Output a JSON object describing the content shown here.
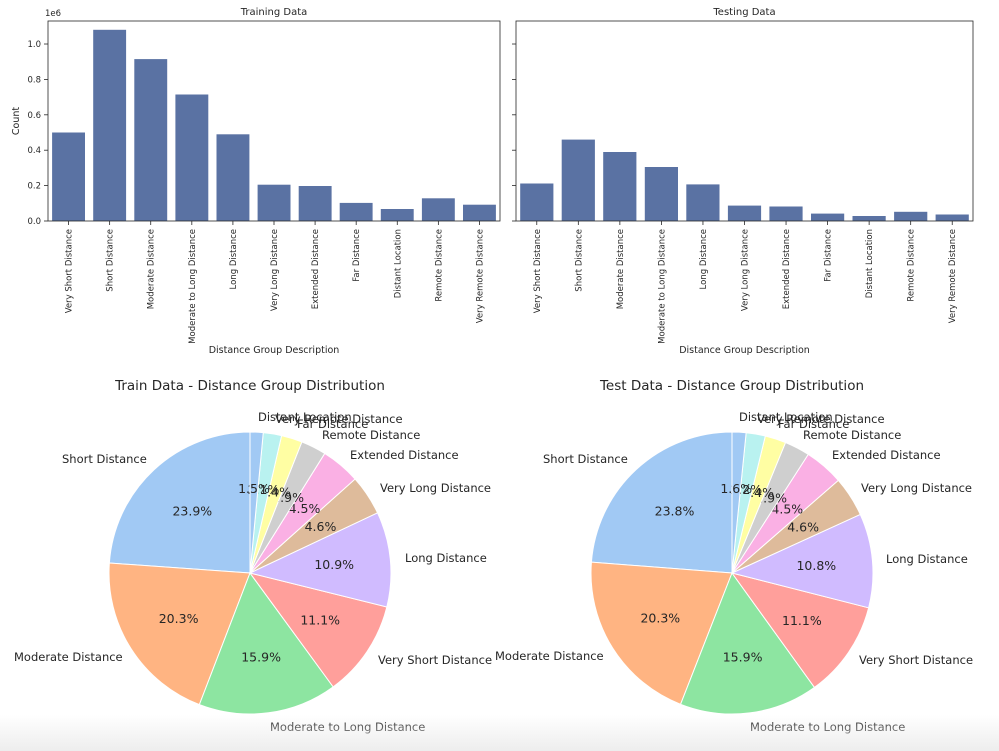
{
  "colors": {
    "bar": "#5a72a3",
    "axis": "#262626",
    "pie": [
      "#a1c9f4",
      "#ffb482",
      "#8de5a1",
      "#ff9f9b",
      "#d0bbff",
      "#debb9b",
      "#fab0e4",
      "#cfcfcf",
      "#fffea3",
      "#b9f2f0"
    ]
  },
  "chart_data": [
    {
      "type": "bar",
      "title": "Training Data",
      "xlabel": "Distance Group Description",
      "ylabel": "Count",
      "y_offset_label": "1e6",
      "ylim": [
        0,
        1.13
      ],
      "yticks": [
        0.0,
        0.2,
        0.4,
        0.6,
        0.8,
        1.0
      ],
      "ytick_labels": [
        "0.0",
        "0.2",
        "0.4",
        "0.6",
        "0.8",
        "1.0"
      ],
      "categories": [
        "Very Short Distance",
        "Short Distance",
        "Moderate Distance",
        "Moderate to Long Distance",
        "Long Distance",
        "Very Long Distance",
        "Extended Distance",
        "Far Distance",
        "Distant Location",
        "Remote Distance",
        "Very Remote Distance"
      ],
      "values": [
        0.5,
        1.08,
        0.915,
        0.715,
        0.49,
        0.205,
        0.198,
        0.102,
        0.068,
        0.128,
        0.092
      ]
    },
    {
      "type": "bar",
      "title": "Testing Data",
      "xlabel": "Distance Group Description",
      "ylabel": "",
      "y_offset_label": "",
      "ylim": [
        0,
        1.13
      ],
      "yticks": [
        0.0,
        0.2,
        0.4,
        0.6,
        0.8,
        1.0
      ],
      "ytick_labels": [
        "",
        "",
        "",
        "",
        "",
        ""
      ],
      "categories": [
        "Very Short Distance",
        "Short Distance",
        "Moderate Distance",
        "Moderate to Long Distance",
        "Long Distance",
        "Very Long Distance",
        "Extended Distance",
        "Far Distance",
        "Distant Location",
        "Remote Distance",
        "Very Remote Distance"
      ],
      "values": [
        0.212,
        0.46,
        0.39,
        0.305,
        0.207,
        0.087,
        0.082,
        0.042,
        0.028,
        0.052,
        0.037
      ]
    },
    {
      "type": "pie",
      "title": "Train Data - Distance Group Distribution",
      "labels": [
        "Short Distance",
        "Moderate Distance",
        "Moderate to Long Distance",
        "Very Short Distance",
        "Long Distance",
        "Very Long Distance",
        "Extended Distance",
        "Remote Distance",
        "Far Distance",
        "Very Remote Distance",
        "Distant Location"
      ],
      "values": [
        23.9,
        20.3,
        15.9,
        11.1,
        10.9,
        4.6,
        4.5,
        2.9,
        2.4,
        2.1,
        1.5
      ],
      "pct_labels": [
        "23.9%",
        "20.3%",
        "15.9%",
        "11.1%",
        "10.9%",
        "4.6%",
        "4.5%",
        "2.9%",
        "2.4%",
        "2.1%",
        "1.5%"
      ],
      "color_index": [
        0,
        1,
        2,
        3,
        4,
        5,
        6,
        7,
        8,
        9,
        0
      ],
      "start_angle_deg": 90,
      "direction": "counterclockwise-from-top-left"
    },
    {
      "type": "pie",
      "title": "Test Data - Distance Group Distribution",
      "labels": [
        "Short Distance",
        "Moderate Distance",
        "Moderate to Long Distance",
        "Very Short Distance",
        "Long Distance",
        "Very Long Distance",
        "Extended Distance",
        "Remote Distance",
        "Far Distance",
        "Very Remote Distance",
        "Distant Location"
      ],
      "values": [
        23.8,
        20.3,
        15.9,
        11.1,
        10.8,
        4.6,
        4.5,
        2.9,
        2.4,
        2.2,
        1.6
      ],
      "pct_labels": [
        "23.8%",
        "20.3%",
        "15.9%",
        "11.1%",
        "10.8%",
        "4.6%",
        "4.5%",
        "2.9%",
        "2.4%",
        "2.2%",
        "1.6%"
      ],
      "color_index": [
        0,
        1,
        2,
        3,
        4,
        5,
        6,
        7,
        8,
        9,
        0
      ],
      "start_angle_deg": 90,
      "direction": "counterclockwise-from-top-left"
    }
  ]
}
